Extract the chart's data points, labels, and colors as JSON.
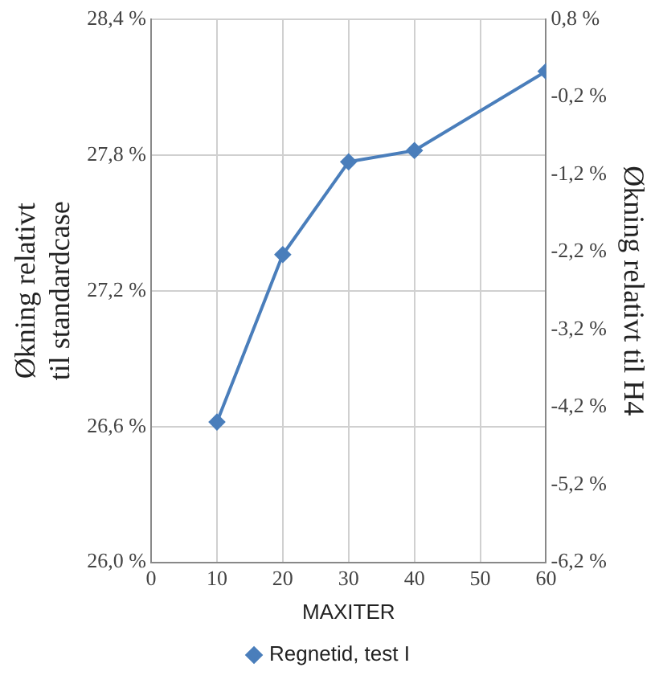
{
  "chart_data": {
    "type": "line",
    "xlabel": "MAXITER",
    "ylabel": "Økning relativt til standardcase",
    "y2label": "Økning relativt til H4",
    "x": [
      10,
      20,
      30,
      40,
      60
    ],
    "series": [
      {
        "name": "Regnetid, test I",
        "color": "#4a7ebb",
        "values": [
          26.62,
          27.36,
          27.77,
          27.82,
          28.17
        ]
      }
    ],
    "xlim": [
      0,
      60
    ],
    "xticks": [
      0,
      10,
      20,
      30,
      40,
      50,
      60
    ],
    "ylim": [
      26.0,
      28.4
    ],
    "yticks": [
      {
        "value": 26.0,
        "label": "26,0 %"
      },
      {
        "value": 26.6,
        "label": "26,6 %"
      },
      {
        "value": 27.2,
        "label": "27,2 %"
      },
      {
        "value": 27.8,
        "label": "27,8 %"
      },
      {
        "value": 28.4,
        "label": "28,4 %"
      }
    ],
    "y2lim": [
      -6.2,
      0.8
    ],
    "y2ticks": [
      {
        "value": -6.2,
        "label": "-6,2 %"
      },
      {
        "value": -5.2,
        "label": "-5,2 %"
      },
      {
        "value": -4.2,
        "label": "-4,2 %"
      },
      {
        "value": -3.2,
        "label": "-3,2 %"
      },
      {
        "value": -2.2,
        "label": "-2,2 %"
      },
      {
        "value": -1.2,
        "label": "-1,2 %"
      },
      {
        "value": -0.2,
        "label": "-0,2 %"
      },
      {
        "value": 0.8,
        "label": "0,8 %"
      }
    ],
    "grid": true,
    "legend": "bottom",
    "marker": "diamond",
    "line_style": "solid"
  }
}
